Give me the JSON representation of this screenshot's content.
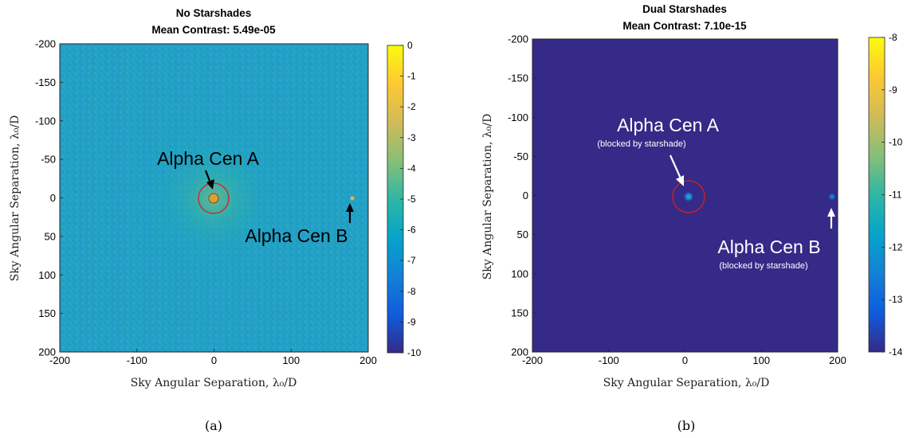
{
  "chart_data": [
    {
      "type": "heatmap",
      "title": "No Starshades",
      "subtitle": "Mean Contrast: 5.49e-05",
      "xlabel": "Sky Angular Separation, λ₀/D",
      "ylabel": "Sky Angular Separation, λ₀/D",
      "xlim": [
        -200,
        200
      ],
      "ylim": [
        -200,
        200
      ],
      "y_reversed": true,
      "xticks": [
        -200,
        -100,
        0,
        100,
        200
      ],
      "yticks": [
        -200,
        -150,
        -100,
        -50,
        0,
        50,
        100,
        150,
        200
      ],
      "colorbar": {
        "min": -10,
        "max": 0,
        "ticks": [
          0,
          -1,
          -2,
          -3,
          -4,
          -5,
          -6,
          -7,
          -8,
          -9,
          -10
        ]
      },
      "background_level": -6.5,
      "sources": [
        {
          "label": "Alpha Cen A",
          "sublabel": "",
          "x": 0,
          "y": 0,
          "level": -3,
          "circled": true
        },
        {
          "label": "Alpha Cen B",
          "sublabel": "",
          "x": 180,
          "y": 0,
          "level": -3.5,
          "circled": false
        }
      ],
      "caption": "(a)"
    },
    {
      "type": "heatmap",
      "title": "Dual Starshades",
      "subtitle": "Mean Contrast: 7.10e-15",
      "xlabel": "Sky Angular Separation, λ₀/D",
      "ylabel": "Sky Angular Separation, λ₀/D",
      "xlim": [
        -200,
        200
      ],
      "ylim": [
        -200,
        200
      ],
      "y_reversed": true,
      "xticks": [
        -200,
        -100,
        0,
        100,
        200
      ],
      "yticks": [
        -200,
        -150,
        -100,
        -50,
        0,
        50,
        100,
        150,
        200
      ],
      "colorbar": {
        "min": -14,
        "max": -8,
        "ticks": [
          -8,
          -9,
          -10,
          -11,
          -12,
          -13,
          -14
        ]
      },
      "background_level": -14,
      "sources": [
        {
          "label": "Alpha Cen A",
          "sublabel": "(blocked by starshade)",
          "x": 0,
          "y": 0,
          "level": -11,
          "circled": true
        },
        {
          "label": "Alpha Cen B",
          "sublabel": "(blocked by starshade)",
          "x": 180,
          "y": 0,
          "level": -12,
          "circled": false
        }
      ],
      "caption": "(b)"
    }
  ],
  "colors": {
    "parula_stops": [
      "#352a87",
      "#0f5cdd",
      "#1481d6",
      "#06a4ca",
      "#2eb7a4",
      "#87bf77",
      "#d1bb59",
      "#fec832",
      "#f9fb0e"
    ],
    "circle": "#d42020",
    "arrow_dark": "#000000",
    "arrow_light": "#ffffff"
  }
}
